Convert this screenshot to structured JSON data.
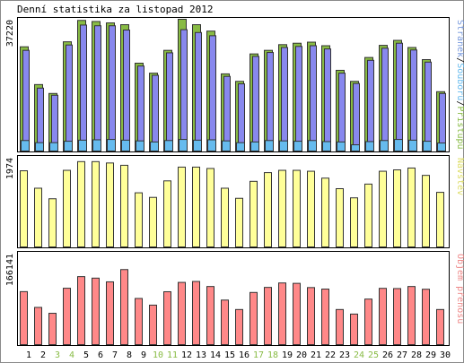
{
  "chart_data": {
    "type": "bar",
    "title": "Denní statistika za listopad 2012",
    "categories": [
      "1",
      "2",
      "3",
      "4",
      "5",
      "6",
      "7",
      "8",
      "9",
      "10",
      "11",
      "12",
      "13",
      "14",
      "15",
      "16",
      "17",
      "18",
      "19",
      "20",
      "21",
      "22",
      "23",
      "24",
      "25",
      "26",
      "27",
      "28",
      "29",
      "30"
    ],
    "weekend_days": [
      "3",
      "4",
      "10",
      "11",
      "17",
      "18",
      "24",
      "25"
    ],
    "panels": [
      {
        "ylabel_parts": [
          "Stránek",
          "/",
          "Souborů",
          "/",
          "Přístupů"
        ],
        "ylabel_colors": [
          "#7799dd",
          "#000000",
          "#66bbee",
          "#000000",
          "#88bb44"
        ],
        "max_label": "37220",
        "ylim": [
          0,
          37220
        ],
        "series": [
          {
            "name": "Přístupů",
            "color": "#88bb44",
            "values": [
              29500,
              18900,
              16400,
              30900,
              36900,
              36600,
              36200,
              35700,
              24900,
              22100,
              28500,
              37220,
              35700,
              33900,
              21900,
              19800,
              27500,
              28500,
              30100,
              30500,
              30800,
              29800,
              22900,
              19800,
              26500,
              29900,
              31300,
              29300,
              25900,
              16900
            ]
          },
          {
            "name": "Souborů",
            "color": "#8888ee",
            "values": [
              28500,
              17900,
              15900,
              30000,
              35600,
              35400,
              35400,
              34200,
              24100,
              21500,
              27800,
              34300,
              33500,
              32600,
              21200,
              19100,
              26800,
              27900,
              29300,
              29600,
              29800,
              28900,
              22100,
              19200,
              25700,
              29100,
              30500,
              28600,
              25200,
              16400
            ]
          },
          {
            "name": "Stránek",
            "color": "#66bbee",
            "values": [
              3200,
              2600,
              2600,
              3000,
              3300,
              3400,
              3500,
              3300,
              3100,
              2800,
              3200,
              3500,
              3300,
              3400,
              3100,
              2600,
              2800,
              3200,
              3100,
              3000,
              3200,
              2900,
              2800,
              2000,
              2900,
              3200,
              3500,
              3300,
              3000,
              2500
            ]
          }
        ]
      },
      {
        "ylabel_parts": [
          "Návštěv"
        ],
        "ylabel_colors": [
          "#dddd66"
        ],
        "max_label": "1974",
        "ylim": [
          0,
          1974
        ],
        "series": [
          {
            "name": "Návštěv",
            "color": "#ffff99",
            "values": [
              1680,
              1300,
              1070,
              1690,
              1880,
              1880,
              1850,
              1800,
              1200,
              1100,
              1460,
              1760,
              1760,
              1730,
              1300,
              1080,
              1450,
              1640,
              1690,
              1690,
              1670,
              1520,
              1290,
              1090,
              1390,
              1670,
              1700,
              1740,
              1580,
              1210
            ]
          }
        ]
      },
      {
        "ylabel_parts": [
          "Objem přenosu"
        ],
        "ylabel_colors": [
          "#ee8888"
        ],
        "max_label": "166141",
        "ylim": [
          0,
          166141
        ],
        "series": [
          {
            "name": "Objem přenosu",
            "color": "#ff8888",
            "values": [
              97000,
              68600,
              58000,
              103100,
              124000,
              121300,
              114600,
              136700,
              84700,
              72700,
              96800,
              113600,
              115300,
              106200,
              81800,
              64800,
              95500,
              104600,
              112600,
              111900,
              104300,
              101600,
              64800,
              56600,
              83600,
              102900,
              102500,
              106200,
              101300,
              64800
            ]
          }
        ]
      }
    ]
  }
}
